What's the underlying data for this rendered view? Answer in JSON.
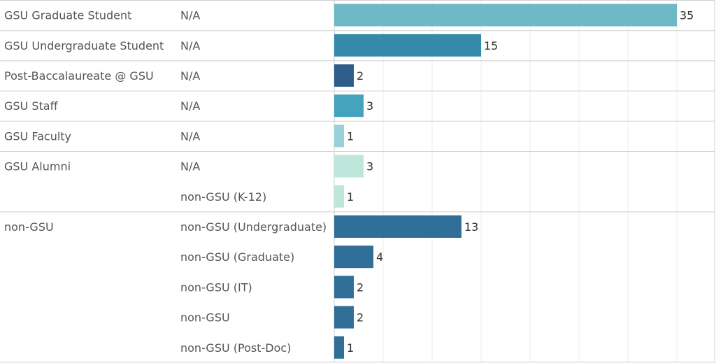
{
  "chart_data": {
    "type": "bar",
    "orientation": "horizontal",
    "title": "",
    "xlabel": "",
    "ylabel": "",
    "xlim": [
      0,
      36
    ],
    "grid": true,
    "legend": "none",
    "groups": [
      {
        "label": "GSU Graduate Student",
        "rows": [
          {
            "label": "N/A",
            "value": 35,
            "color": "#6fb9c7"
          }
        ]
      },
      {
        "label": "GSU Undergraduate Student",
        "rows": [
          {
            "label": "N/A",
            "value": 15,
            "color": "#358aab"
          }
        ]
      },
      {
        "label": "Post-Baccalaureate @ GSU",
        "rows": [
          {
            "label": "N/A",
            "value": 2,
            "color": "#2f5d8a"
          }
        ]
      },
      {
        "label": "GSU Staff",
        "rows": [
          {
            "label": "N/A",
            "value": 3,
            "color": "#45a3bd"
          }
        ]
      },
      {
        "label": "GSU Faculty",
        "rows": [
          {
            "label": "N/A",
            "value": 1,
            "color": "#99d1d8"
          }
        ]
      },
      {
        "label": "GSU Alumni",
        "rows": [
          {
            "label": "N/A",
            "value": 3,
            "color": "#bfe6da"
          },
          {
            "label": "non-GSU (K-12)",
            "value": 1,
            "color": "#bfe6da"
          }
        ]
      },
      {
        "label": "non-GSU",
        "rows": [
          {
            "label": "non-GSU (Undergraduate)",
            "value": 13,
            "color": "#306f97"
          },
          {
            "label": "non-GSU (Graduate)",
            "value": 4,
            "color": "#306f97"
          },
          {
            "label": "non-GSU (IT)",
            "value": 2,
            "color": "#306f97"
          },
          {
            "label": "non-GSU",
            "value": 2,
            "color": "#306f97"
          },
          {
            "label": "non-GSU (Post-Doc)",
            "value": 1,
            "color": "#306f97"
          }
        ]
      }
    ]
  }
}
